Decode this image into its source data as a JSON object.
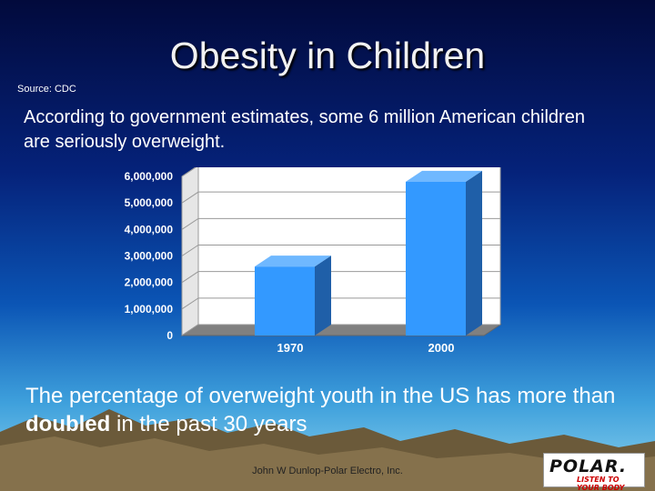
{
  "slide": {
    "title": "Obesity in Children",
    "source": "Source: CDC",
    "intro": "According to government estimates, some 6 million American children are seriously overweight.",
    "bottom_before": "The percentage of overweight youth in the US has more than ",
    "bottom_bold": "doubled",
    "bottom_after": " in the past 30 years",
    "footer": "John W Dunlop-Polar Electro, Inc.",
    "logo_text": "POLAR.",
    "logo_tagline": "LISTEN TO YOUR BODY"
  },
  "colors": {
    "bar_face": "#3399ff",
    "bar_side": "#1f5fa8",
    "bar_top": "#6fb8ff",
    "plot_bg": "#ffffff",
    "floor": "#808080"
  },
  "chart_data": {
    "type": "bar",
    "categories": [
      "1970",
      "2000"
    ],
    "values": [
      2600000,
      5800000
    ],
    "yticks": [
      "0",
      "1,000,000",
      "2,000,000",
      "3,000,000",
      "4,000,000",
      "5,000,000",
      "6,000,000"
    ],
    "ylim": [
      0,
      6000000
    ],
    "grid": true,
    "title": "",
    "xlabel": "",
    "ylabel": ""
  }
}
